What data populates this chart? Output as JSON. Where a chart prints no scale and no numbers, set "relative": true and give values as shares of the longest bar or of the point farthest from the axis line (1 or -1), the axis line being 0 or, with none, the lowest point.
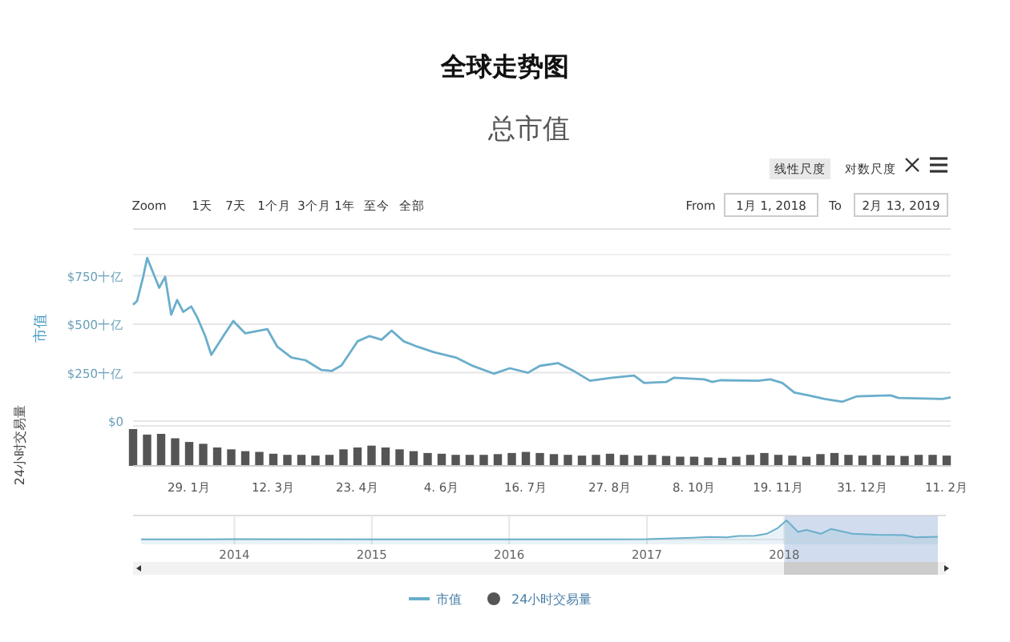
{
  "chart_data": [
    {
      "type": "line",
      "title": "全球走势图",
      "subtitle": "总市值",
      "ylabel": "市值",
      "marker": "none",
      "grid": "y",
      "legend": "bottom",
      "tick_labels": "y",
      "annotations": [
        "线性尺度",
        "对数尺度",
        "Zoom",
        "1天",
        "7天",
        "1个月",
        "3个月",
        "1年",
        "至今",
        "全部",
        "From",
        "1月 1, 2018",
        "To",
        "2月 13, 2019"
      ],
      "xlim": [
        "2018-01-01",
        "2019-02-13"
      ],
      "ylim": [
        0,
        860
      ],
      "yticks": [
        {
          "value": 0,
          "label": "$0"
        },
        {
          "value": 250,
          "label": "$250十亿"
        },
        {
          "value": 500,
          "label": "$500十亿"
        },
        {
          "value": 750,
          "label": "$750十亿"
        }
      ],
      "series": [
        {
          "name": "市值",
          "color": "#6aaecb",
          "x": [
            "2018-01-01",
            "2018-01-03",
            "2018-01-06",
            "2018-01-08",
            "2018-01-14",
            "2018-01-17",
            "2018-01-20",
            "2018-01-23",
            "2018-01-26",
            "2018-01-30",
            "2018-02-02",
            "2018-02-06",
            "2018-02-09",
            "2018-02-15",
            "2018-02-20",
            "2018-02-26",
            "2018-03-09",
            "2018-03-14",
            "2018-03-21",
            "2018-03-28",
            "2018-04-05",
            "2018-04-10",
            "2018-04-15",
            "2018-04-23",
            "2018-04-29",
            "2018-05-05",
            "2018-05-10",
            "2018-05-16",
            "2018-05-23",
            "2018-05-31",
            "2018-06-11",
            "2018-06-19",
            "2018-06-30",
            "2018-07-08",
            "2018-07-17",
            "2018-07-23",
            "2018-08-01",
            "2018-08-09",
            "2018-08-17",
            "2018-08-28",
            "2018-09-08",
            "2018-09-13",
            "2018-09-24",
            "2018-09-28",
            "2018-10-13",
            "2018-10-17",
            "2018-10-21",
            "2018-11-09",
            "2018-11-15",
            "2018-11-21",
            "2018-11-27",
            "2018-12-04",
            "2018-12-12",
            "2018-12-21",
            "2018-12-28",
            "2019-01-14",
            "2019-01-18",
            "2019-02-09",
            "2019-02-13"
          ],
          "values": [
            600,
            620,
            745,
            843,
            689,
            745,
            550,
            625,
            564,
            592,
            536,
            439,
            342,
            439,
            517,
            453,
            475,
            384,
            328,
            314,
            264,
            259,
            287,
            412,
            439,
            420,
            467,
            412,
            384,
            356,
            328,
            287,
            245,
            273,
            250,
            285,
            299,
            258,
            208,
            224,
            235,
            197,
            202,
            224,
            216,
            202,
            211,
            208,
            216,
            197,
            147,
            133,
            114,
            100,
            127,
            133,
            119,
            114,
            122
          ]
        }
      ]
    },
    {
      "type": "bar",
      "ylabel": "24小时交易量",
      "relative": true,
      "legend": "bottom",
      "tick_labels": "x",
      "xlim": [
        "2018-01-01",
        "2019-02-13"
      ],
      "xticks": [
        {
          "value": "2018-01-29",
          "label": "29. 1月"
        },
        {
          "value": "2018-03-12",
          "label": "12. 3月"
        },
        {
          "value": "2018-04-23",
          "label": "23. 4月"
        },
        {
          "value": "2018-06-04",
          "label": "4. 6月"
        },
        {
          "value": "2018-07-16",
          "label": "16. 7月"
        },
        {
          "value": "2018-08-27",
          "label": "27. 8月"
        },
        {
          "value": "2018-10-08",
          "label": "8. 10月"
        },
        {
          "value": "2018-11-19",
          "label": "19. 11月"
        },
        {
          "value": "2018-12-31",
          "label": "31. 12月"
        },
        {
          "value": "2019-02-11",
          "label": "11. 2月"
        }
      ],
      "x": [
        "2018-01-01",
        "2018-01-08",
        "2018-01-15",
        "2018-01-22",
        "2018-01-29",
        "2018-02-05",
        "2018-02-12",
        "2018-02-19",
        "2018-02-26",
        "2018-03-05",
        "2018-03-12",
        "2018-03-19",
        "2018-03-26",
        "2018-04-02",
        "2018-04-09",
        "2018-04-16",
        "2018-04-23",
        "2018-04-30",
        "2018-05-07",
        "2018-05-14",
        "2018-05-21",
        "2018-05-28",
        "2018-06-04",
        "2018-06-11",
        "2018-06-18",
        "2018-06-25",
        "2018-07-02",
        "2018-07-09",
        "2018-07-16",
        "2018-07-23",
        "2018-07-30",
        "2018-08-06",
        "2018-08-13",
        "2018-08-20",
        "2018-08-27",
        "2018-09-03",
        "2018-09-10",
        "2018-09-17",
        "2018-09-24",
        "2018-10-01",
        "2018-10-08",
        "2018-10-15",
        "2018-10-22",
        "2018-10-29",
        "2018-11-05",
        "2018-11-12",
        "2018-11-19",
        "2018-11-26",
        "2018-12-03",
        "2018-12-10",
        "2018-12-17",
        "2018-12-24",
        "2018-12-31",
        "2019-01-07",
        "2019-01-14",
        "2019-01-21",
        "2019-01-28",
        "2019-02-04",
        "2019-02-11"
      ],
      "series": [
        {
          "name": "24小时交易量",
          "color": "#555555",
          "values": [
            1.0,
            0.85,
            0.87,
            0.75,
            0.65,
            0.6,
            0.5,
            0.45,
            0.4,
            0.38,
            0.33,
            0.3,
            0.3,
            0.28,
            0.3,
            0.45,
            0.5,
            0.55,
            0.5,
            0.45,
            0.4,
            0.35,
            0.33,
            0.3,
            0.3,
            0.3,
            0.32,
            0.35,
            0.38,
            0.35,
            0.32,
            0.3,
            0.28,
            0.3,
            0.33,
            0.3,
            0.28,
            0.3,
            0.27,
            0.25,
            0.25,
            0.23,
            0.22,
            0.25,
            0.3,
            0.35,
            0.3,
            0.28,
            0.25,
            0.32,
            0.35,
            0.3,
            0.28,
            0.3,
            0.28,
            0.27,
            0.3,
            0.3,
            0.28
          ]
        }
      ]
    },
    {
      "type": "area",
      "relative": true,
      "tick_labels": "x",
      "grid": "x",
      "xlim": [
        "2013-04-28",
        "2019-02-13"
      ],
      "xticks": [
        {
          "value": "2014-01-01",
          "label": "2014"
        },
        {
          "value": "2015-01-01",
          "label": "2015"
        },
        {
          "value": "2016-01-01",
          "label": "2016"
        },
        {
          "value": "2017-01-01",
          "label": "2017"
        },
        {
          "value": "2018-01-01",
          "label": "2018"
        }
      ],
      "bands": [
        {
          "axis": "x",
          "from": "2018-01-01",
          "to": "2019-02-13",
          "color": "#c5d3ea"
        }
      ],
      "series": [
        {
          "color": "#6aaecb",
          "x": [
            "2013-04-28",
            "2014-01-01",
            "2015-01-01",
            "2016-01-01",
            "2017-01-01",
            "2017-05-01",
            "2017-06-15",
            "2017-08-01",
            "2017-09-01",
            "2017-10-15",
            "2017-11-15",
            "2017-12-15",
            "2018-01-07",
            "2018-02-06",
            "2018-03-01",
            "2018-04-08",
            "2018-05-05",
            "2018-07-01",
            "2018-09-01",
            "2018-11-15",
            "2018-12-15",
            "2019-02-13"
          ],
          "values": [
            0.01,
            0.015,
            0.008,
            0.01,
            0.02,
            0.09,
            0.13,
            0.12,
            0.18,
            0.2,
            0.3,
            0.6,
            1.0,
            0.4,
            0.5,
            0.3,
            0.55,
            0.3,
            0.25,
            0.23,
            0.12,
            0.15
          ]
        }
      ]
    }
  ]
}
